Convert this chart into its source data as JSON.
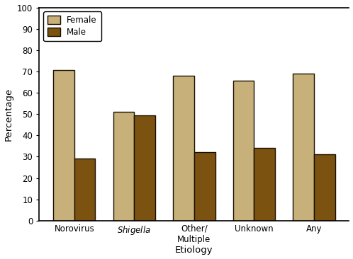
{
  "categories": [
    "Norovirus",
    "Shigella",
    "Other/\nMultiple",
    "Unknown",
    "Any"
  ],
  "female_values": [
    70.5,
    51,
    68,
    65.5,
    69
  ],
  "male_values": [
    29,
    49.5,
    32,
    34,
    31
  ],
  "female_color": "#C8B07A",
  "male_color": "#7B5210",
  "bar_edge_color": "#1A1000",
  "ylabel": "Percentage",
  "xlabel": "Etiology",
  "ylim": [
    0,
    100
  ],
  "yticks": [
    0,
    10,
    20,
    30,
    40,
    50,
    60,
    70,
    80,
    90,
    100
  ],
  "legend_labels": [
    "Female",
    "Male"
  ],
  "bar_width": 0.35,
  "figsize": [
    4.98,
    3.66
  ],
  "dpi": 100
}
